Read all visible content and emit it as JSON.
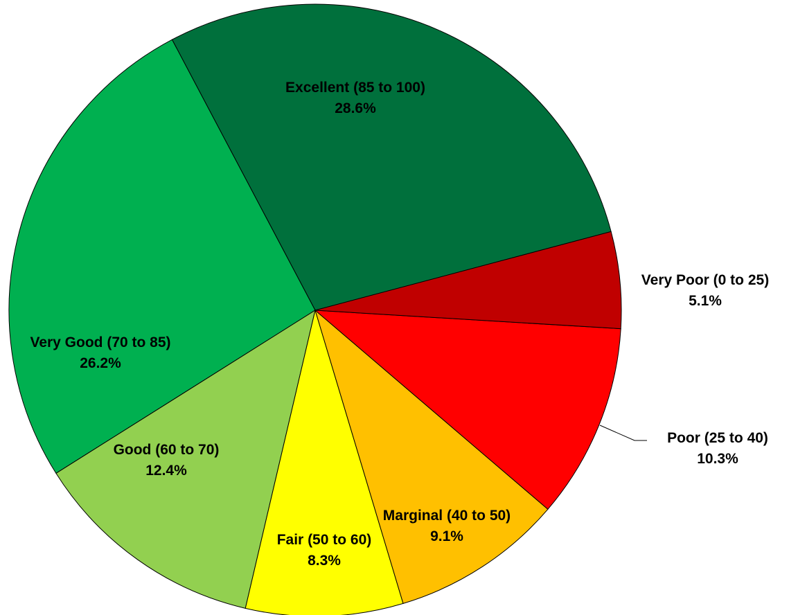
{
  "chart_data": {
    "type": "pie",
    "categories": [
      "Very Poor (0 to 25)",
      "Poor (25 to 40)",
      "Marginal (40 to 50)",
      "Fair (50 to 60)",
      "Good (60 to 70)",
      "Very Good (70 to 85)",
      "Excellent (85 to 100)"
    ],
    "values": [
      5.1,
      10.3,
      9.1,
      8.3,
      12.4,
      26.2,
      28.6
    ],
    "value_labels": [
      "5.1%",
      "10.3%",
      "9.1%",
      "8.3%",
      "12.4%",
      "26.2%",
      "28.6%"
    ],
    "colors": [
      "#c00000",
      "#ff0000",
      "#ffc000",
      "#ffff00",
      "#92d050",
      "#00b050",
      "#00703c"
    ]
  }
}
